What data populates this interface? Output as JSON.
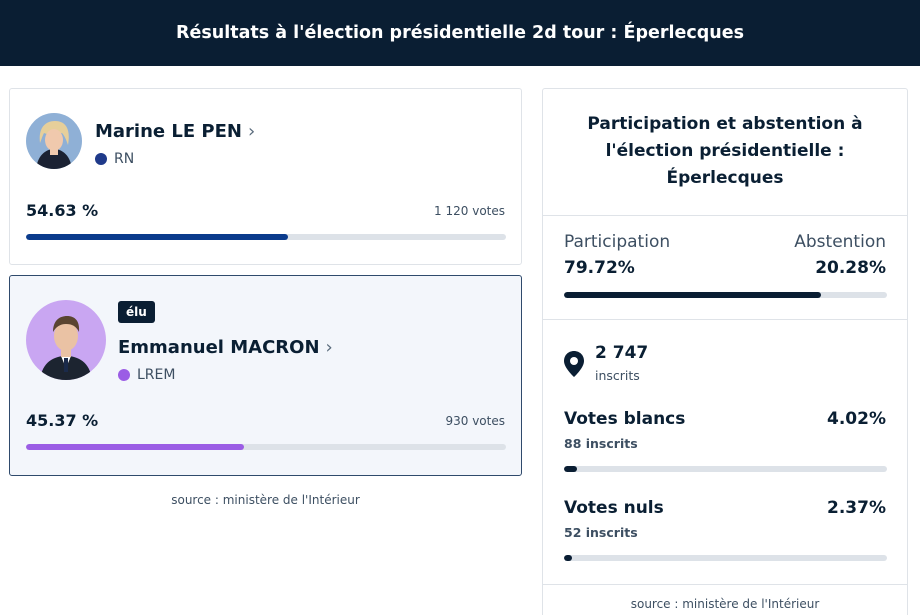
{
  "header": {
    "title": "Résultats à l'élection présidentielle 2d tour : Éperlecques"
  },
  "candidates": [
    {
      "name": "Marine LE PEN",
      "party": "RN",
      "party_color": "#1f3a8a",
      "percent_label": "54.63 %",
      "percent": 54.63,
      "votes_label": "1 120 votes",
      "bar_color": "#0b3b8c",
      "elected": false
    },
    {
      "name": "Emmanuel MACRON",
      "party": "LREM",
      "party_color": "#9b5de5",
      "percent_label": "45.37 %",
      "percent": 45.37,
      "votes_label": "930 votes",
      "bar_color": "#9b5de5",
      "elected": true,
      "elected_badge": "élu"
    }
  ],
  "left_source": "source : ministère de l'Intérieur",
  "participation": {
    "title": "Participation et abstention à l'élection présidentielle : Éperlecques",
    "participation_label": "Participation",
    "participation_value": "79.72%",
    "participation_percent": 79.72,
    "abstention_label": "Abstention",
    "abstention_value": "20.28%",
    "bar_color": "#0a1e33",
    "inscrits_count": "2 747",
    "inscrits_label": "inscrits",
    "blancs_label": "Votes blancs",
    "blancs_value": "4.02%",
    "blancs_percent": 4.02,
    "blancs_sub": "88 inscrits",
    "nuls_label": "Votes nuls",
    "nuls_value": "2.37%",
    "nuls_percent": 2.37,
    "nuls_sub": "52 inscrits",
    "source": "source : ministère de l'Intérieur"
  }
}
